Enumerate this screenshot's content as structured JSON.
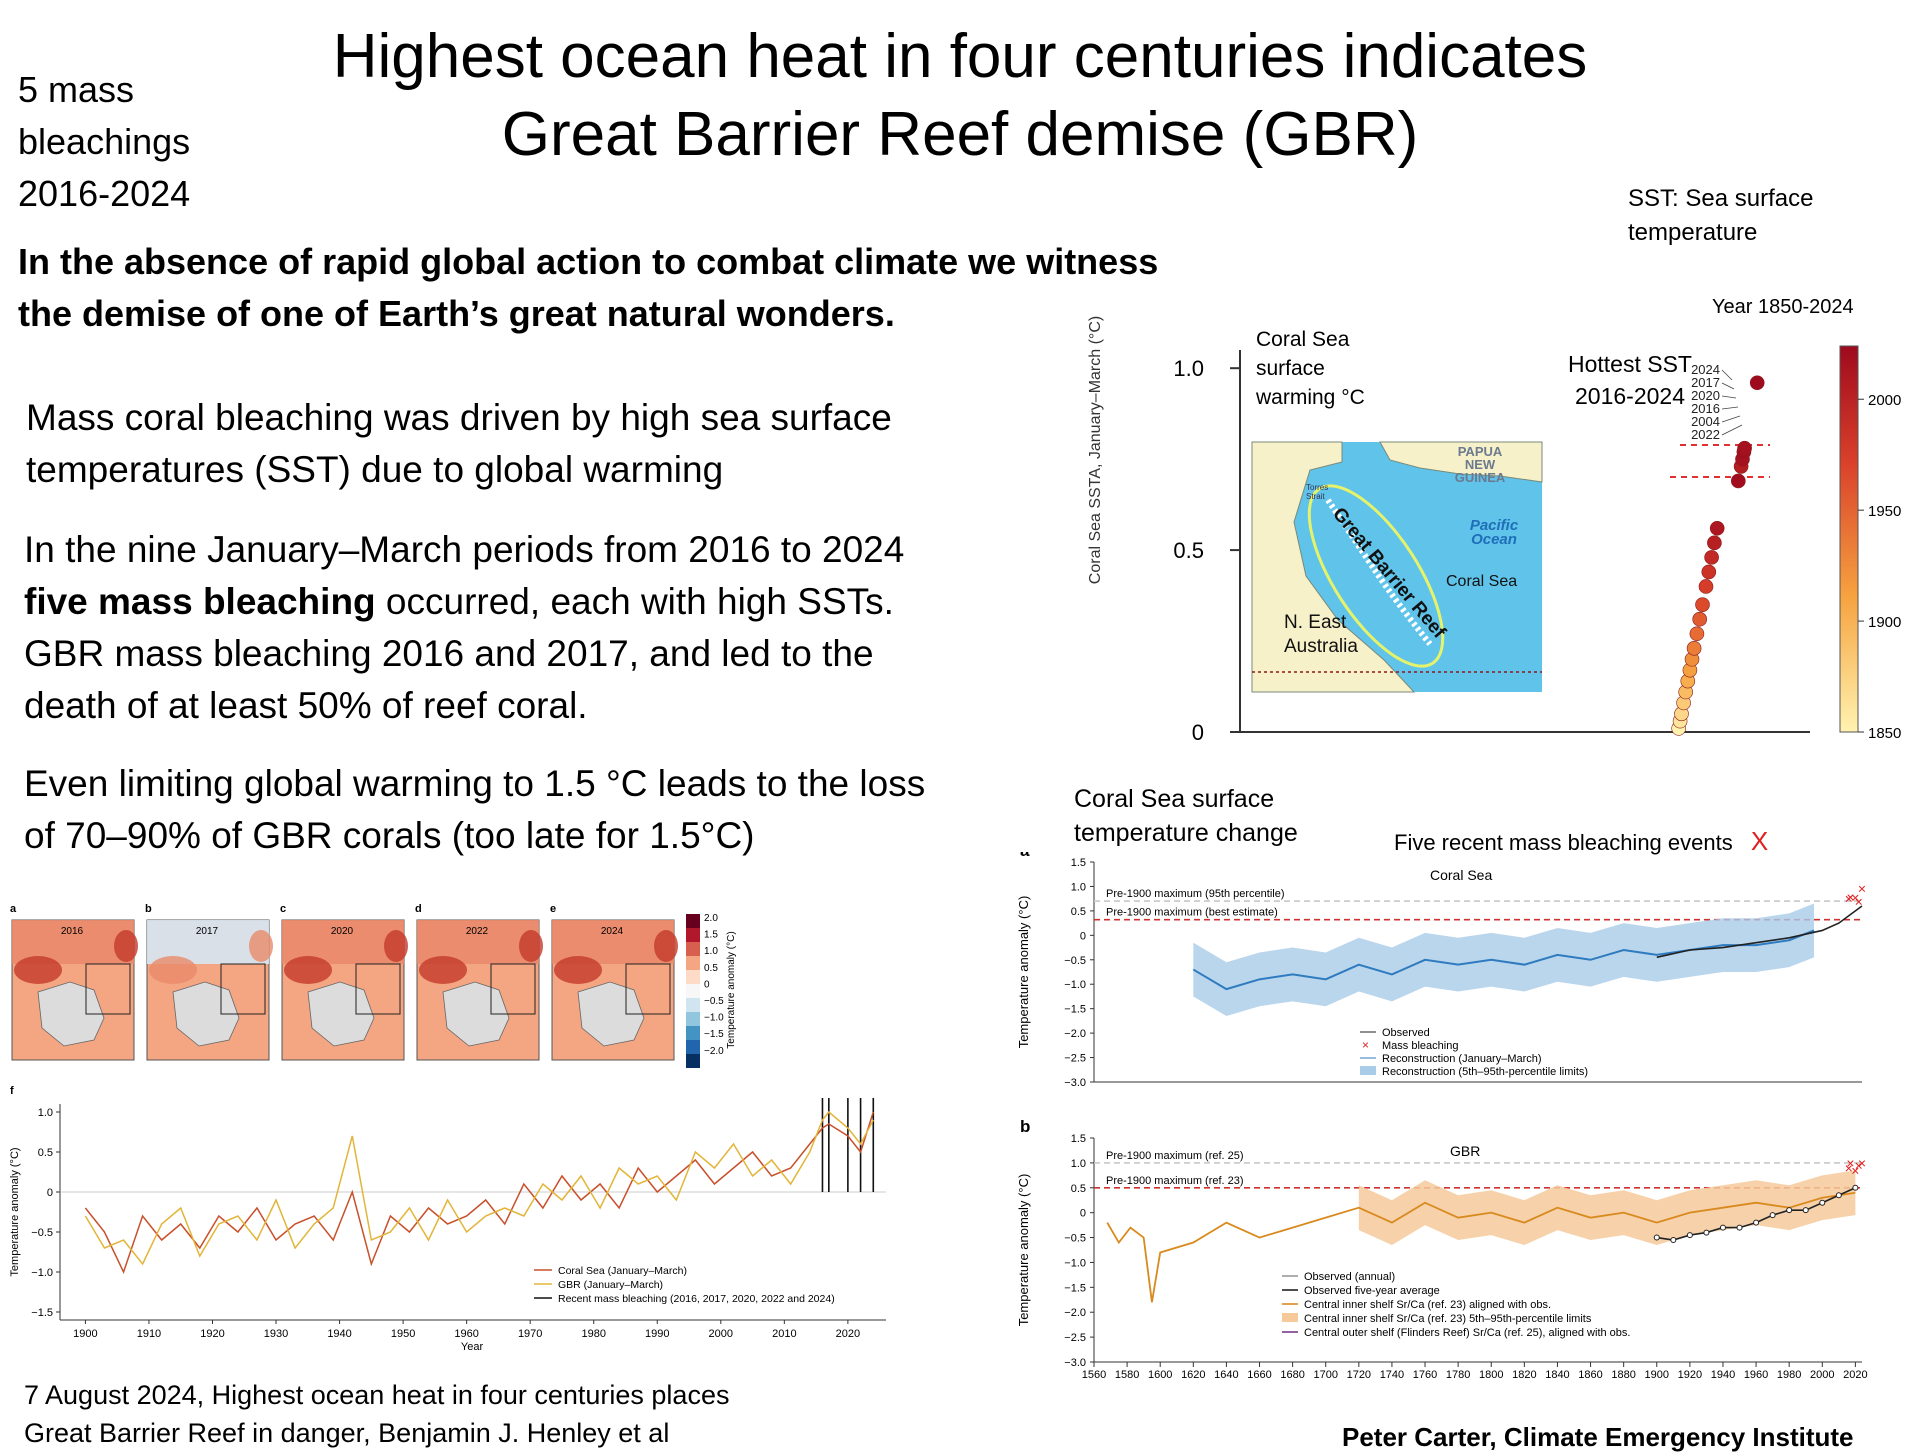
{
  "header": {
    "title_line1": "Highest ocean heat in four centuries indicates",
    "title_line2": "Great Barrier Reef demise  (GBR)",
    "side_note": [
      "5 mass",
      "bleachings",
      "2016-2024"
    ],
    "sst_note": [
      "SST: Sea surface",
      "temperature"
    ]
  },
  "body": {
    "lead": [
      "In the absence of rapid global action to combat  climate we witness",
      "the demise of one of Earth’s great natural wonders."
    ],
    "para1": [
      "Mass coral bleaching was driven by high sea surface",
      "temperatures (SST) due to global warming"
    ],
    "para2_line1": "In the nine January–March periods from 2016 to 2024",
    "para2_bold": "five mass  bleaching",
    "para2_rest": " occurred, each with high SSTs.",
    "para2_line3": "GBR mass bleaching 2016 and 2017, and led to the",
    "para2_line4": "death of at least  50% of reef coral.",
    "para3": [
      "Even limiting global warming to 1.5 °C leads to the loss",
      "of 70–90% of GBR corals (too late for 1.5°C)"
    ]
  },
  "footer": {
    "citation": [
      "7 August 2024, Highest ocean heat in four centuries places",
      "Great Barrier Reef in danger, Benjamin J. Henley et al"
    ],
    "author": "Peter Carter,  Climate Emergency Institute"
  },
  "colors": {
    "observed": "#222222",
    "bleach": "#e02020",
    "recon": "#2e7bbf",
    "band": "#a9cce8",
    "gbr": "#d98a1f",
    "coral": "#c8502a",
    "pre": "#d03030"
  },
  "chart_data": [
    {
      "type": "scatter",
      "title": "",
      "ylabel": "Coral Sea SSTA, January–March (°C)",
      "ylim": [
        0,
        1.0
      ],
      "yticks": [
        "1.0",
        "0.5",
        "0"
      ],
      "annotations": {
        "coral_sea": [
          "Coral Sea",
          "surface",
          "warming °C"
        ],
        "hottest": [
          "Hottest SST",
          "2016-2024"
        ],
        "year_range": "Year 1850-2024",
        "years": [
          "2024",
          "2017",
          "2020",
          "2016",
          "2004",
          "2022"
        ]
      },
      "colorbar": {
        "labels": [
          "2000",
          "1950",
          "1900",
          "1850"
        ],
        "range": [
          1850,
          2024
        ]
      },
      "map_labels": {
        "png": [
          "PAPUA",
          "NEW",
          "GUINEA"
        ],
        "torres": [
          "Torres",
          "Strait"
        ],
        "pacific": [
          "Pacific",
          "Ocean"
        ],
        "reef": "Great Barrier Reef",
        "coral_sea": "Coral Sea",
        "australia": [
          "N. East",
          "Australia"
        ]
      },
      "points": [
        {
          "year": 1850,
          "v": 0.01
        },
        {
          "year": 1860,
          "v": 0.03
        },
        {
          "year": 1870,
          "v": 0.05
        },
        {
          "year": 1880,
          "v": 0.08
        },
        {
          "year": 1890,
          "v": 0.11
        },
        {
          "year": 1900,
          "v": 0.14
        },
        {
          "year": 1910,
          "v": 0.17
        },
        {
          "year": 1920,
          "v": 0.2
        },
        {
          "year": 1930,
          "v": 0.23
        },
        {
          "year": 1940,
          "v": 0.27
        },
        {
          "year": 1950,
          "v": 0.31
        },
        {
          "year": 1960,
          "v": 0.35
        },
        {
          "year": 1970,
          "v": 0.4
        },
        {
          "year": 1980,
          "v": 0.44
        },
        {
          "year": 1990,
          "v": 0.48
        },
        {
          "year": 2000,
          "v": 0.52
        },
        {
          "year": 2010,
          "v": 0.56
        },
        {
          "year": 2022,
          "v": 0.69
        },
        {
          "year": 2004,
          "v": 0.73
        },
        {
          "year": 2016,
          "v": 0.75
        },
        {
          "year": 2020,
          "v": 0.77
        },
        {
          "year": 2017,
          "v": 0.78
        },
        {
          "year": 2024,
          "v": 0.96
        }
      ]
    },
    {
      "type": "line",
      "panel": "a",
      "title": "Coral Sea",
      "heading": [
        "Coral Sea surface",
        "temperature change"
      ],
      "subheading": "Five recent mass bleaching events",
      "subheading_marker": "X",
      "ylabel": "Temperature anomaly (°C)",
      "ylim": [
        -3.0,
        1.5
      ],
      "yticks": [
        "1.5",
        "1.0",
        "0.5",
        "0",
        "−0.5",
        "−1.0",
        "−1.5",
        "−2.0",
        "−2.5",
        "−3.0"
      ],
      "xlim": [
        1560,
        2024
      ],
      "ref_lines": [
        {
          "label": "Pre-1900 maximum (95th percentile)",
          "value": 0.7
        },
        {
          "label": "Pre-1900 maximum (best estimate)",
          "value": 0.32
        }
      ],
      "legend": [
        "Observed",
        "Mass bleaching",
        "Reconstruction (January–March)",
        "Reconstruction (5th–95th-percentile limits)"
      ],
      "reconstruction": [
        [
          1620,
          -0.7
        ],
        [
          1640,
          -1.1
        ],
        [
          1660,
          -0.9
        ],
        [
          1680,
          -0.8
        ],
        [
          1700,
          -0.9
        ],
        [
          1720,
          -0.6
        ],
        [
          1740,
          -0.8
        ],
        [
          1760,
          -0.5
        ],
        [
          1780,
          -0.6
        ],
        [
          1800,
          -0.5
        ],
        [
          1820,
          -0.6
        ],
        [
          1840,
          -0.4
        ],
        [
          1860,
          -0.5
        ],
        [
          1880,
          -0.3
        ],
        [
          1900,
          -0.4
        ],
        [
          1920,
          -0.3
        ],
        [
          1940,
          -0.2
        ],
        [
          1960,
          -0.2
        ],
        [
          1980,
          -0.1
        ],
        [
          1995,
          0.1
        ]
      ],
      "observed": [
        [
          1900,
          -0.45
        ],
        [
          1920,
          -0.3
        ],
        [
          1940,
          -0.25
        ],
        [
          1960,
          -0.15
        ],
        [
          1980,
          -0.05
        ],
        [
          2000,
          0.1
        ],
        [
          2010,
          0.25
        ],
        [
          2024,
          0.6
        ]
      ],
      "bleaching": [
        {
          "year": 2016,
          "v": 0.75
        },
        {
          "year": 2017,
          "v": 0.78
        },
        {
          "year": 2020,
          "v": 0.77
        },
        {
          "year": 2022,
          "v": 0.69
        },
        {
          "year": 2024,
          "v": 0.96
        }
      ]
    },
    {
      "type": "line",
      "panel": "b",
      "title": "GBR",
      "xlabel": "Year",
      "ylabel": "Temperature anomaly (°C)",
      "ylim": [
        -3.0,
        1.5
      ],
      "yticks": [
        "1.5",
        "1.0",
        "0.5",
        "0",
        "−0.5",
        "−1.0",
        "−1.5",
        "−2.0",
        "−2.5",
        "−3.0"
      ],
      "xlim": [
        1560,
        2024
      ],
      "xticks": [
        "1560",
        "1580",
        "1600",
        "1620",
        "1640",
        "1660",
        "1680",
        "1700",
        "1720",
        "1740",
        "1760",
        "1780",
        "1800",
        "1820",
        "1840",
        "1860",
        "1880",
        "1900",
        "1920",
        "1940",
        "1960",
        "1980",
        "2000",
        "2020"
      ],
      "ref_lines": [
        {
          "label": "Pre-1900 maximum (ref. 25)",
          "value": 1.0
        },
        {
          "label": "Pre-1900 maximum (ref. 23)",
          "value": 0.5
        }
      ],
      "legend": [
        "Observed (annual)",
        "Observed five-year average",
        "Central inner shelf Sr/Ca (ref. 23) aligned with obs.",
        "Central inner shelf Sr/Ca (ref. 23) 5th–95th-percentile limits",
        "Central outer shelf (Flinders Reef) Sr/Ca (ref. 25), aligned with obs."
      ],
      "sr_ca_inner": [
        [
          1568,
          -0.2
        ],
        [
          1575,
          -0.6
        ],
        [
          1582,
          -0.3
        ],
        [
          1590,
          -0.5
        ],
        [
          1595,
          -1.8
        ],
        [
          1600,
          -0.8
        ],
        [
          1620,
          -0.6
        ],
        [
          1640,
          -0.2
        ],
        [
          1660,
          -0.5
        ],
        [
          1680,
          -0.3
        ],
        [
          1700,
          -0.1
        ],
        [
          1720,
          0.1
        ],
        [
          1740,
          -0.2
        ],
        [
          1760,
          0.2
        ],
        [
          1780,
          -0.1
        ],
        [
          1800,
          0.0
        ],
        [
          1820,
          -0.2
        ],
        [
          1840,
          0.1
        ],
        [
          1860,
          -0.1
        ],
        [
          1880,
          0.0
        ],
        [
          1900,
          -0.2
        ],
        [
          1920,
          0.0
        ],
        [
          1940,
          0.1
        ],
        [
          1960,
          0.2
        ],
        [
          1980,
          0.1
        ],
        [
          2000,
          0.3
        ],
        [
          2020,
          0.4
        ]
      ],
      "observed_5yr": [
        [
          1900,
          -0.5
        ],
        [
          1910,
          -0.55
        ],
        [
          1920,
          -0.45
        ],
        [
          1930,
          -0.4
        ],
        [
          1940,
          -0.3
        ],
        [
          1950,
          -0.3
        ],
        [
          1960,
          -0.2
        ],
        [
          1970,
          -0.05
        ],
        [
          1980,
          0.05
        ],
        [
          1990,
          0.05
        ],
        [
          2000,
          0.2
        ],
        [
          2010,
          0.35
        ],
        [
          2020,
          0.5
        ]
      ],
      "bleaching": [
        {
          "year": 2016,
          "v": 0.9
        },
        {
          "year": 2017,
          "v": 1.0
        },
        {
          "year": 2020,
          "v": 0.85
        },
        {
          "year": 2022,
          "v": 0.95
        },
        {
          "year": 2024,
          "v": 1.0
        }
      ]
    },
    {
      "type": "heatmap",
      "panels": [
        "a",
        "b",
        "c",
        "d",
        "e"
      ],
      "years": [
        "2016",
        "2017",
        "2020",
        "2022",
        "2024"
      ],
      "intensity": [
        0.85,
        0.45,
        0.7,
        0.65,
        0.9
      ],
      "colorbar_ticks": [
        "2.0",
        "1.5",
        "1.0",
        "0.5",
        "0",
        "−0.5",
        "−1.0",
        "−1.5",
        "−2.0"
      ],
      "colorbar_label": "Temperature anomaly (°C)"
    },
    {
      "type": "line",
      "panel": "f",
      "xlabel": "Year",
      "ylabel": "Temperature anomaly (°C)",
      "ylim": [
        -1.6,
        1.1
      ],
      "yticks": [
        "1.0",
        "0.5",
        "0",
        "−0.5",
        "−1.0",
        "−1.5"
      ],
      "xlim": [
        1900,
        2024
      ],
      "xticks": [
        "1900",
        "1910",
        "1920",
        "1930",
        "1940",
        "1950",
        "1960",
        "1970",
        "1980",
        "1990",
        "2000",
        "2010",
        "2020"
      ],
      "legend": [
        "Coral Sea (January–March)",
        "GBR (January–March)",
        "Recent mass bleaching (2016, 2017, 2020, 2022 and 2024)"
      ],
      "bleaching_years": [
        2016,
        2017,
        2020,
        2022,
        2024
      ],
      "series": [
        {
          "name": "Coral Sea (January–March)",
          "x": [
            1900,
            1903,
            1906,
            1909,
            1912,
            1915,
            1918,
            1921,
            1924,
            1927,
            1930,
            1933,
            1936,
            1939,
            1942,
            1945,
            1948,
            1951,
            1954,
            1957,
            1960,
            1963,
            1966,
            1969,
            1972,
            1975,
            1978,
            1981,
            1984,
            1987,
            1990,
            1993,
            1996,
            1999,
            2002,
            2005,
            2008,
            2011,
            2014,
            2016,
            2017,
            2020,
            2022,
            2024
          ],
          "values": [
            -0.2,
            -0.5,
            -1.0,
            -0.3,
            -0.6,
            -0.4,
            -0.7,
            -0.3,
            -0.5,
            -0.2,
            -0.6,
            -0.4,
            -0.3,
            -0.6,
            0.0,
            -0.9,
            -0.3,
            -0.5,
            -0.2,
            -0.4,
            -0.3,
            -0.1,
            -0.4,
            0.1,
            -0.2,
            0.2,
            -0.1,
            0.1,
            -0.2,
            0.3,
            0.0,
            0.2,
            0.4,
            0.1,
            0.3,
            0.5,
            0.2,
            0.3,
            0.6,
            0.8,
            0.85,
            0.7,
            0.5,
            1.0
          ]
        },
        {
          "name": "GBR (January–March)",
          "x": [
            1900,
            1903,
            1906,
            1909,
            1912,
            1915,
            1918,
            1921,
            1924,
            1927,
            1930,
            1933,
            1936,
            1939,
            1942,
            1945,
            1948,
            1951,
            1954,
            1957,
            1960,
            1963,
            1966,
            1969,
            1972,
            1975,
            1978,
            1981,
            1984,
            1987,
            1990,
            1993,
            1996,
            1999,
            2002,
            2005,
            2008,
            2011,
            2014,
            2016,
            2017,
            2020,
            2022,
            2024
          ],
          "values": [
            -0.3,
            -0.7,
            -0.6,
            -0.9,
            -0.4,
            -0.2,
            -0.8,
            -0.4,
            -0.3,
            -0.6,
            -0.1,
            -0.7,
            -0.4,
            -0.2,
            0.7,
            -0.6,
            -0.5,
            -0.2,
            -0.6,
            -0.1,
            -0.5,
            -0.3,
            -0.2,
            -0.3,
            0.1,
            -0.1,
            0.2,
            -0.2,
            0.3,
            0.1,
            0.2,
            -0.1,
            0.5,
            0.3,
            0.6,
            0.2,
            0.4,
            0.1,
            0.5,
            0.9,
            1.0,
            0.8,
            0.6,
            0.9
          ]
        }
      ]
    }
  ]
}
